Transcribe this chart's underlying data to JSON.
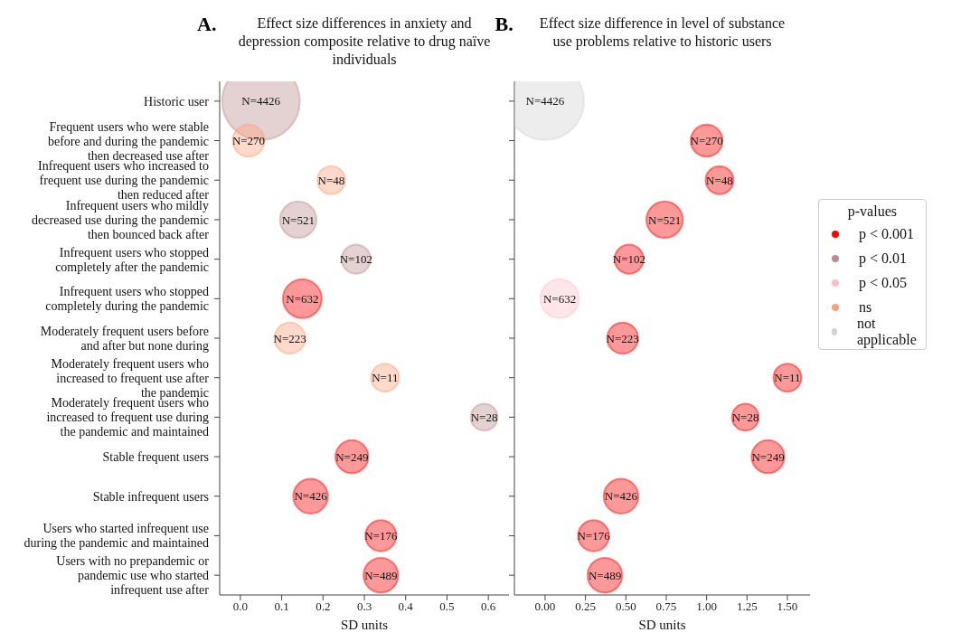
{
  "chart_data": [
    {
      "type": "bubble",
      "orientation": "horizontal",
      "title": "Effect size differences in anxiety and depression composite relative to drug naïve individuals",
      "xlabel": "SD units",
      "categories": [
        "Historic user",
        "Frequent users who were stable before and during the pandemic then decreased use after",
        "Infrequent users who increased to frequent use during the pandemic then reduced after",
        "Infrequent users who mildly decreased use during the pandemic then bounced back after",
        "Infrequent users who stopped completely after the pandemic",
        "Infrequent users who stopped completely during the pandemic",
        "Moderately frequent users before and after but none during",
        "Moderately frequent users who increased to frequent use after the pandemic",
        "Moderately frequent users who increased to frequent use during the pandemic and maintained",
        "Stable frequent users",
        "Stable infrequent users",
        "Users who started infrequent use during the pandemic and maintained",
        "Users with no prepandemic or pandemic use who started infrequent use after"
      ],
      "xlim": [
        -0.05,
        0.65
      ],
      "xticks": [
        {
          "value": 0,
          "label": "0.0"
        },
        0.1,
        0.2,
        0.3,
        0.4,
        0.5,
        0.6
      ],
      "series": [
        {
          "color": "#ff0000",
          "values": [
            null,
            null,
            null,
            null,
            null,
            0.15,
            null,
            null,
            null,
            0.27,
            0.17,
            0.34,
            0.34
          ],
          "sizes": [
            null,
            null,
            null,
            null,
            null,
            0.25,
            null,
            null,
            null,
            0.18,
            0.2,
            0.16,
            0.2
          ]
        },
        {
          "color": "#bc8f8f",
          "values": [
            0.05,
            null,
            null,
            0.14,
            0.28,
            null,
            null,
            null,
            0.59,
            null,
            null,
            null,
            null
          ],
          "sizes": [
            1,
            null,
            null,
            0.22,
            0.14,
            null,
            null,
            null,
            0.12,
            null,
            null,
            null,
            null
          ]
        },
        {
          "color": "#ffa07a",
          "values": [
            null,
            0.02,
            0.22,
            null,
            null,
            null,
            0.12,
            0.35,
            null,
            null,
            null,
            null,
            null
          ],
          "sizes": [
            null,
            0.17,
            0.13,
            null,
            null,
            null,
            0.16,
            0.13,
            null,
            null,
            null,
            null,
            null
          ]
        }
      ],
      "annotations": [
        "A.",
        {
          "text": "N=4426",
          "x": 0.05,
          "y": "Historic user"
        },
        {
          "text": "N=270",
          "x": 0.02,
          "y": "Frequent users who were stable before and during the pandemic then decreased use after"
        },
        {
          "text": "N=48",
          "x": 0.22,
          "y": "Infrequent users who increased to frequent use during the pandemic then reduced after"
        },
        {
          "text": "N=521",
          "x": 0.14,
          "y": "Infrequent users who mildly decreased use during the pandemic then bounced back after"
        },
        {
          "text": "N=102",
          "x": 0.28,
          "y": "Infrequent users who stopped completely after the pandemic"
        },
        {
          "text": "N=632",
          "x": 0.15,
          "y": "Infrequent users who stopped completely during the pandemic"
        },
        {
          "text": "N=223",
          "x": 0.12,
          "y": "Moderately frequent users before and after but none during"
        },
        {
          "text": "N=11",
          "x": 0.35,
          "y": "Moderately frequent users who increased to frequent use after the pandemic"
        },
        {
          "text": "N=28",
          "x": 0.59,
          "y": "Moderately frequent users who increased to frequent use during the pandemic and maintained"
        },
        {
          "text": "N=249",
          "x": 0.27,
          "y": "Stable frequent users"
        },
        {
          "text": "N=426",
          "x": 0.17,
          "y": "Stable infrequent users"
        },
        {
          "text": "N=176",
          "x": 0.34,
          "y": "Users who started infrequent use during the pandemic and maintained"
        },
        {
          "text": "N=489",
          "x": 0.34,
          "y": "Users with no prepandemic or pandemic use who started infrequent use after"
        }
      ]
    },
    {
      "type": "bubble",
      "orientation": "horizontal",
      "title": "Effect size difference in level of substance use problems relative to historic users",
      "xlabel": "SD units",
      "tick_labels": "x",
      "legend": "right",
      "legend_title": "p-values",
      "categories": [
        "Historic user",
        "Frequent users who were stable before and during the pandemic then decreased use after",
        "Infrequent users who increased to frequent use during the pandemic then reduced after",
        "Infrequent users who mildly decreased use during the pandemic then bounced back after",
        "Infrequent users who stopped completely after the pandemic",
        "Infrequent users who stopped completely during the pandemic",
        "Moderately frequent users before and after but none during",
        "Moderately frequent users who increased to frequent use after the pandemic",
        "Moderately frequent users who increased to frequent use during the pandemic and maintained",
        "Stable frequent users",
        "Stable infrequent users",
        "Users who started infrequent use during the pandemic and maintained",
        "Users with no prepandemic or pandemic use who started infrequent use after"
      ],
      "xlim": [
        -0.19,
        1.64
      ],
      "xticks": [
        {
          "value": 0,
          "label": "0.00"
        },
        {
          "value": 0.25,
          "label": "0.25"
        },
        {
          "value": 0.5,
          "label": "0.50"
        },
        {
          "value": 0.75,
          "label": "0.75"
        },
        {
          "value": 1,
          "label": "1.00"
        },
        {
          "value": 1.25,
          "label": "1.25"
        },
        {
          "value": 1.5,
          "label": "1.50"
        }
      ],
      "series": [
        {
          "name": "p < 0.001",
          "color": "#ff0000",
          "values": [
            null,
            1.0,
            1.08,
            0.74,
            0.52,
            null,
            0.48,
            1.5,
            1.24,
            1.38,
            0.47,
            0.3,
            0.37
          ],
          "sizes": [
            null,
            0.17,
            0.13,
            0.22,
            0.14,
            null,
            0.16,
            0.13,
            0.12,
            0.18,
            0.2,
            0.16,
            0.2
          ]
        },
        {
          "name": "p < 0.01",
          "color": "#bc8f8f",
          "values": [
            null,
            null,
            null,
            null,
            null,
            null,
            null,
            null,
            null,
            null,
            null,
            null,
            null
          ],
          "sizes": [
            null,
            null,
            null,
            null,
            null,
            null,
            null,
            null,
            null,
            null,
            null,
            null,
            null
          ]
        },
        {
          "name": "p < 0.05",
          "color": "#ffc0cb",
          "values": [
            null,
            null,
            null,
            null,
            null,
            0.09,
            null,
            null,
            null,
            null,
            null,
            null,
            null
          ],
          "sizes": [
            null,
            null,
            null,
            null,
            null,
            0.25,
            null,
            null,
            null,
            null,
            null,
            null,
            null
          ]
        },
        {
          "name": "ns",
          "color": "#ffa07a",
          "values": [
            null,
            null,
            null,
            null,
            null,
            null,
            null,
            null,
            null,
            null,
            null,
            null,
            null
          ],
          "sizes": [
            null,
            null,
            null,
            null,
            null,
            null,
            null,
            null,
            null,
            null,
            null,
            null,
            null
          ]
        },
        {
          "name": "not applicable",
          "color": "#d3d3d3",
          "values": [
            0.0,
            null,
            null,
            null,
            null,
            null,
            null,
            null,
            null,
            null,
            null,
            null,
            null
          ],
          "sizes": [
            1,
            null,
            null,
            null,
            null,
            null,
            null,
            null,
            null,
            null,
            null,
            null,
            null
          ]
        }
      ],
      "annotations": [
        "B.",
        {
          "text": "N=4426",
          "x": 0.0,
          "y": "Historic user"
        },
        {
          "text": "N=270",
          "x": 1.0,
          "y": "Frequent users who were stable before and during the pandemic then decreased use after"
        },
        {
          "text": "N=48",
          "x": 1.08,
          "y": "Infrequent users who increased to frequent use during the pandemic then reduced after"
        },
        {
          "text": "N=521",
          "x": 0.74,
          "y": "Infrequent users who mildly decreased use during the pandemic then bounced back after"
        },
        {
          "text": "N=102",
          "x": 0.52,
          "y": "Infrequent users who stopped completely after the pandemic"
        },
        {
          "text": "N=632",
          "x": 0.09,
          "y": "Infrequent users who stopped completely during the pandemic"
        },
        {
          "text": "N=223",
          "x": 0.48,
          "y": "Moderately frequent users before and after but none during"
        },
        {
          "text": "N=11",
          "x": 1.5,
          "y": "Moderately frequent users who increased to frequent use after the pandemic"
        },
        {
          "text": "N=28",
          "x": 1.24,
          "y": "Moderately frequent users who increased to frequent use during the pandemic and maintained"
        },
        {
          "text": "N=249",
          "x": 1.38,
          "y": "Stable frequent users"
        },
        {
          "text": "N=426",
          "x": 0.47,
          "y": "Stable infrequent users"
        },
        {
          "text": "N=176",
          "x": 0.3,
          "y": "Users who started infrequent use during the pandemic and maintained"
        },
        {
          "text": "N=489",
          "x": 0.37,
          "y": "Users with no prepandemic or pandemic use who started infrequent use after"
        }
      ]
    }
  ]
}
